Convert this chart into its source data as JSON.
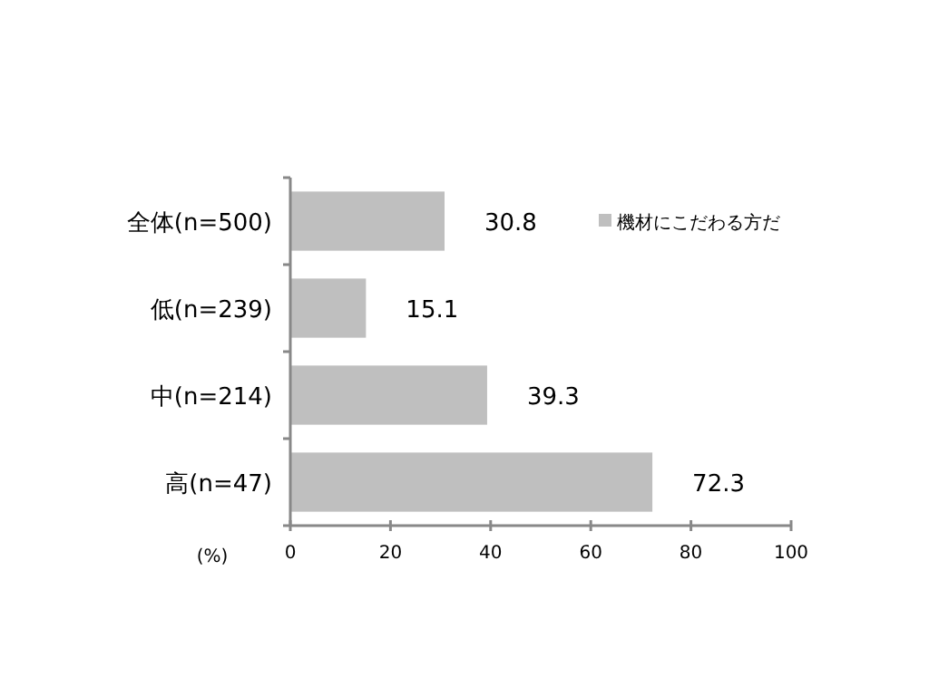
{
  "chart_data": {
    "type": "bar",
    "orientation": "horizontal",
    "categories": [
      "全体(n=500)",
      "低(n=239)",
      "中(n=214)",
      "高(n=47)"
    ],
    "series": [
      {
        "name": "機材にこだわる方だ",
        "color": "#bfbfbf",
        "values": [
          30.8,
          15.1,
          39.3,
          72.3
        ]
      }
    ],
    "xlabel": "(%)",
    "xlim": [
      0,
      100
    ],
    "xticks": [
      0,
      20,
      40,
      60,
      80,
      100
    ],
    "data_labels": true,
    "legend": "top right"
  }
}
